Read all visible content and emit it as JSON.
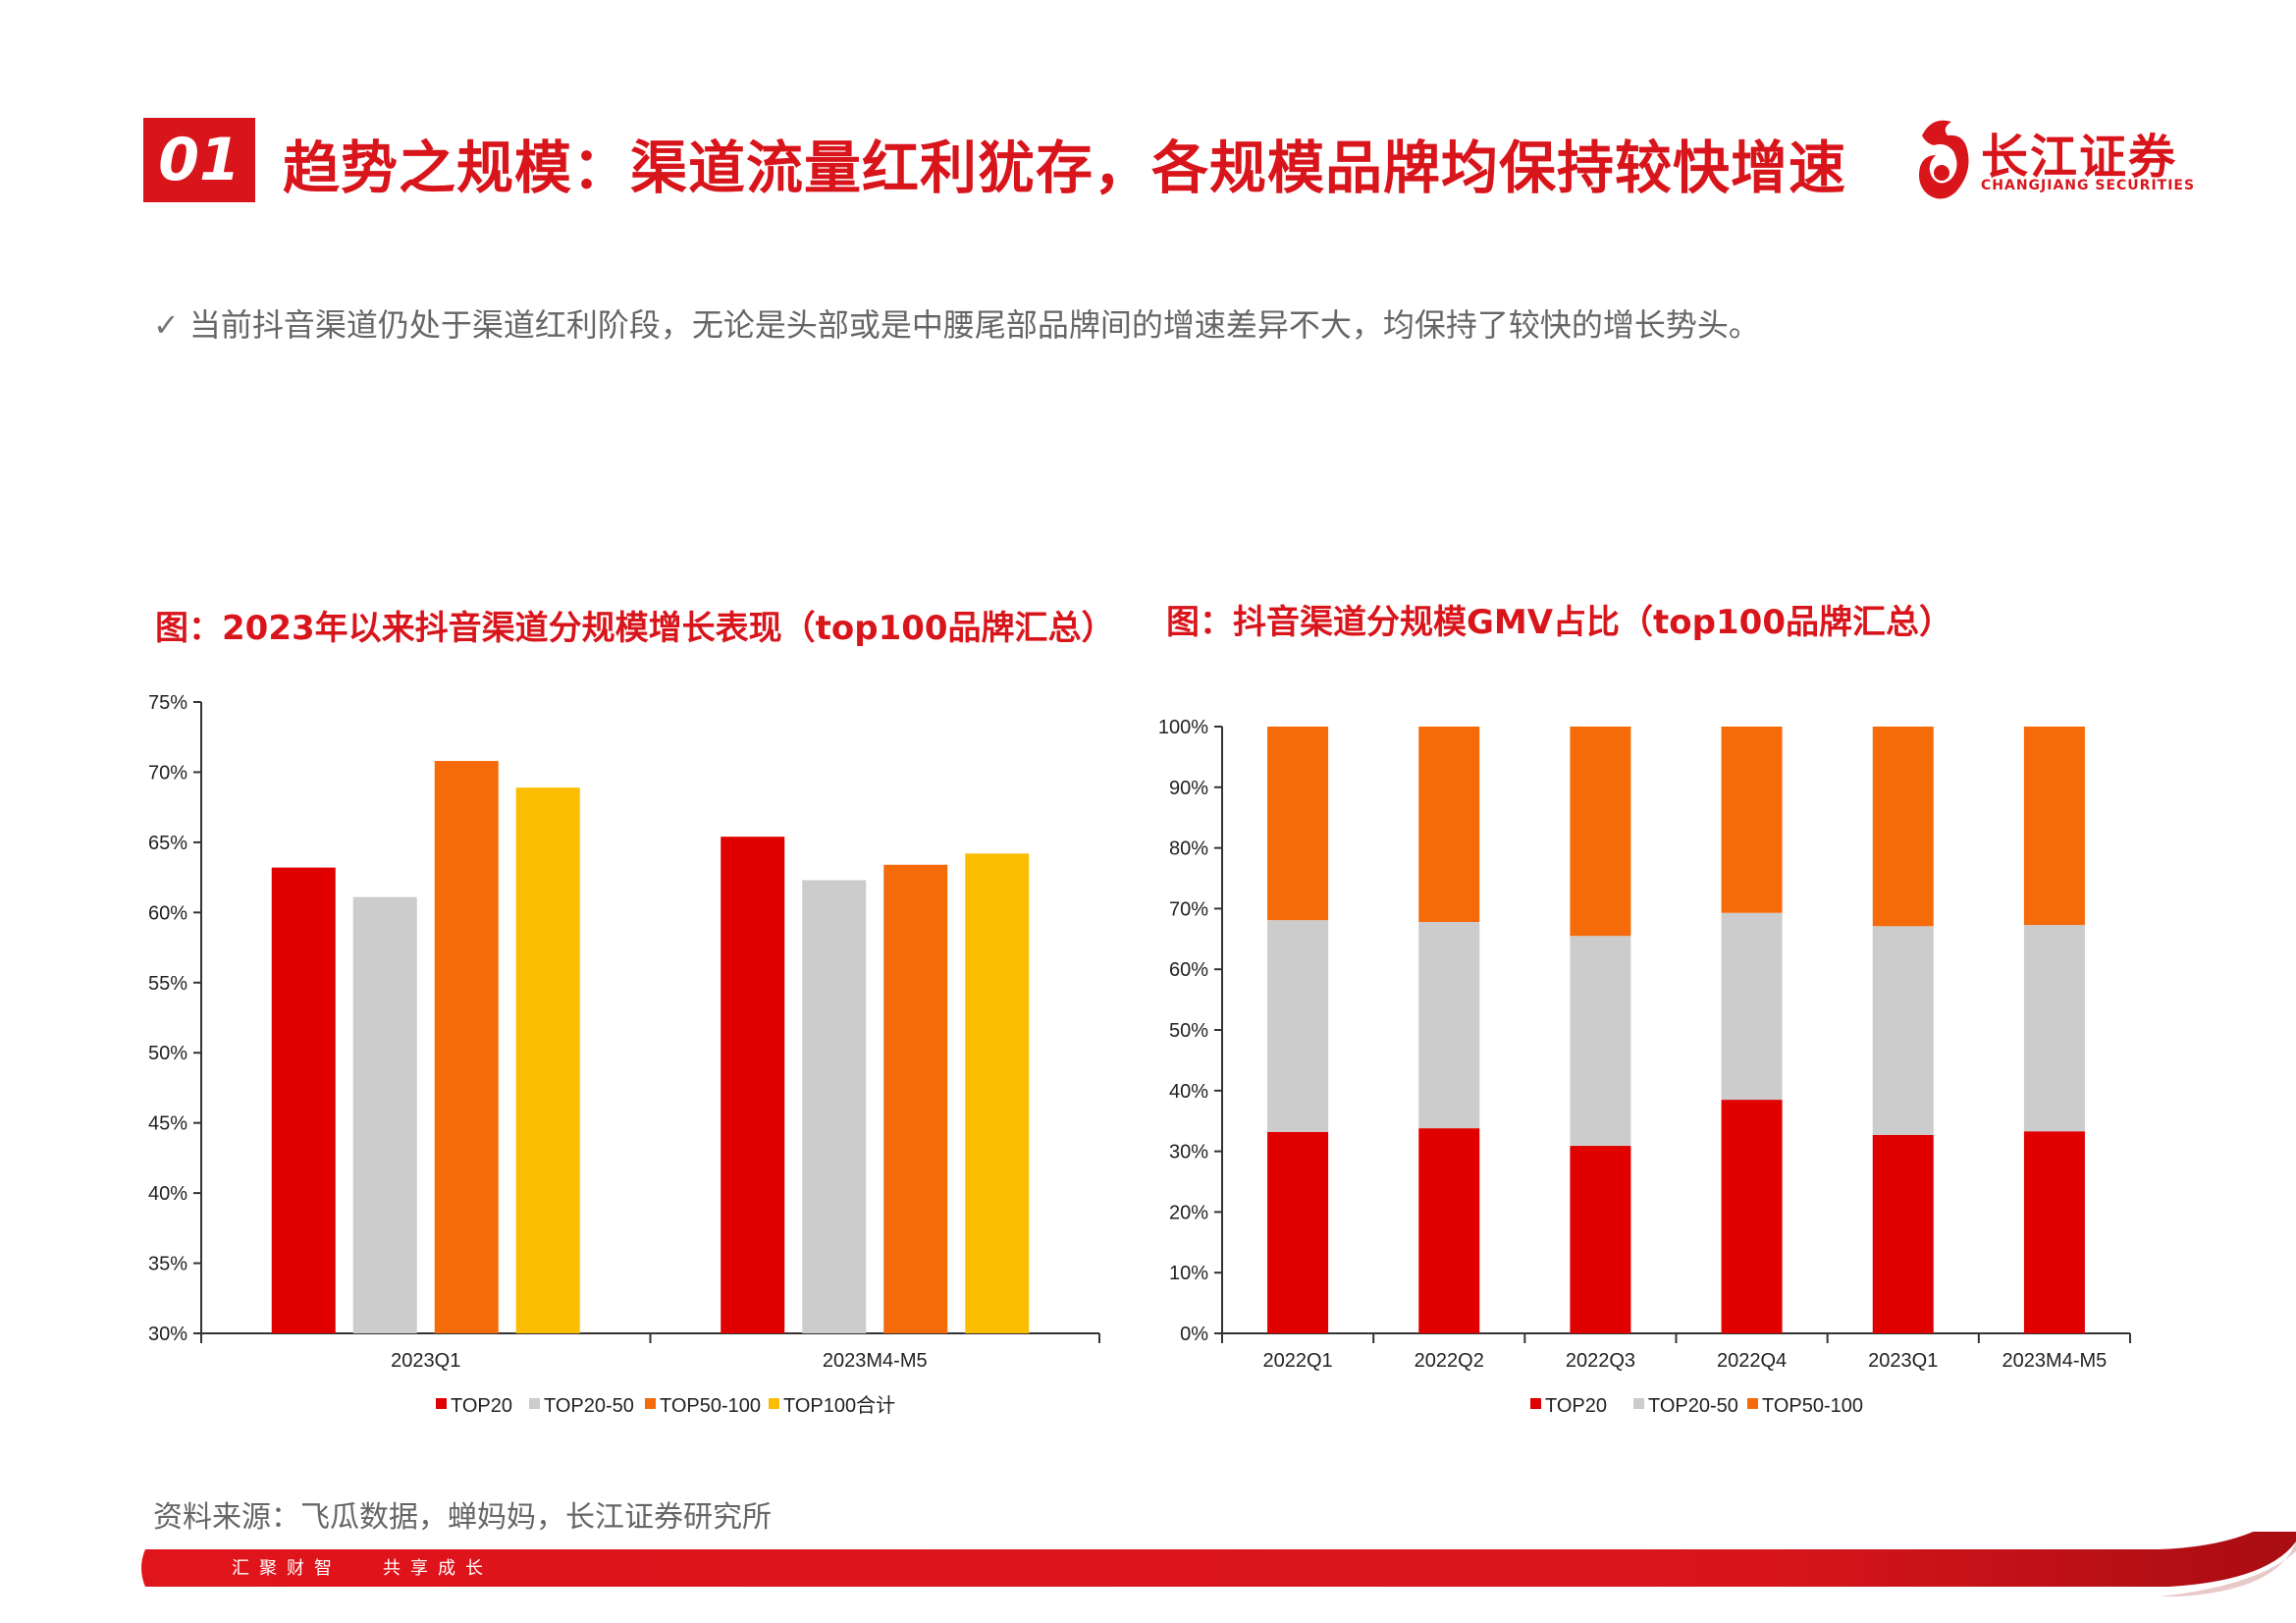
{
  "header": {
    "section_number": "01",
    "title": "趋势之规模：渠道流量红利犹存，各规模品牌均保持较快增速"
  },
  "logo": {
    "name_cn": "长江证券",
    "name_en": "CHANGJIANG SECURITIES"
  },
  "bullet": {
    "check_icon": "✓",
    "text": "当前抖音渠道仍处于渠道红利阶段，无论是头部或是中腰尾部品牌间的增速差异不大，均保持了较快的增长势头。"
  },
  "charts": {
    "left_title": "图：2023年以来抖音渠道分规模增长表现（top100品牌汇总）",
    "right_title": "图：抖音渠道分规模GMV占比（top100品牌汇总）"
  },
  "chart_data": [
    {
      "type": "bar",
      "title": "图：2023年以来抖音渠道分规模增长表现（top100品牌汇总）",
      "categories": [
        "2023Q1",
        "2023M4-M5"
      ],
      "series": [
        {
          "name": "TOP20",
          "color": "#e00000",
          "values": [
            63.2,
            65.4
          ]
        },
        {
          "name": "TOP20-50",
          "color": "#cccccc",
          "values": [
            61.1,
            62.3
          ]
        },
        {
          "name": "TOP50-100",
          "color": "#f56b0a",
          "values": [
            70.8,
            63.4
          ]
        },
        {
          "name": "TOP100合计",
          "color": "#fbbd00",
          "values": [
            68.9,
            64.2
          ]
        }
      ],
      "ylim": [
        30,
        75
      ],
      "yticks": [
        "30%",
        "35%",
        "40%",
        "45%",
        "50%",
        "55%",
        "60%",
        "65%",
        "70%",
        "75%"
      ],
      "grid": false,
      "legend": "bottom"
    },
    {
      "type": "bar",
      "stacked": true,
      "title": "图：抖音渠道分规模GMV占比（top100品牌汇总）",
      "categories": [
        "2022Q1",
        "2022Q2",
        "2022Q3",
        "2022Q4",
        "2023Q1",
        "2023M4-M5"
      ],
      "series": [
        {
          "name": "TOP20",
          "color": "#e00000",
          "values": [
            33.2,
            33.8,
            30.9,
            38.5,
            32.7,
            33.3
          ]
        },
        {
          "name": "TOP20-50",
          "color": "#cccccc",
          "values": [
            34.9,
            34.0,
            34.6,
            30.8,
            34.4,
            34.0
          ]
        },
        {
          "name": "TOP50-100",
          "color": "#f56b0a",
          "values": [
            31.9,
            32.2,
            34.5,
            30.7,
            32.9,
            32.7
          ]
        }
      ],
      "ylim": [
        0,
        100
      ],
      "yticks": [
        "0%",
        "10%",
        "20%",
        "30%",
        "40%",
        "50%",
        "60%",
        "70%",
        "80%",
        "90%",
        "100%"
      ],
      "grid": false,
      "legend": "bottom"
    }
  ],
  "footer": {
    "source": "资料来源：飞瓜数据，蝉妈妈，长江证券研究所",
    "slogan_left": "汇聚财智",
    "slogan_right": "共享成长"
  }
}
